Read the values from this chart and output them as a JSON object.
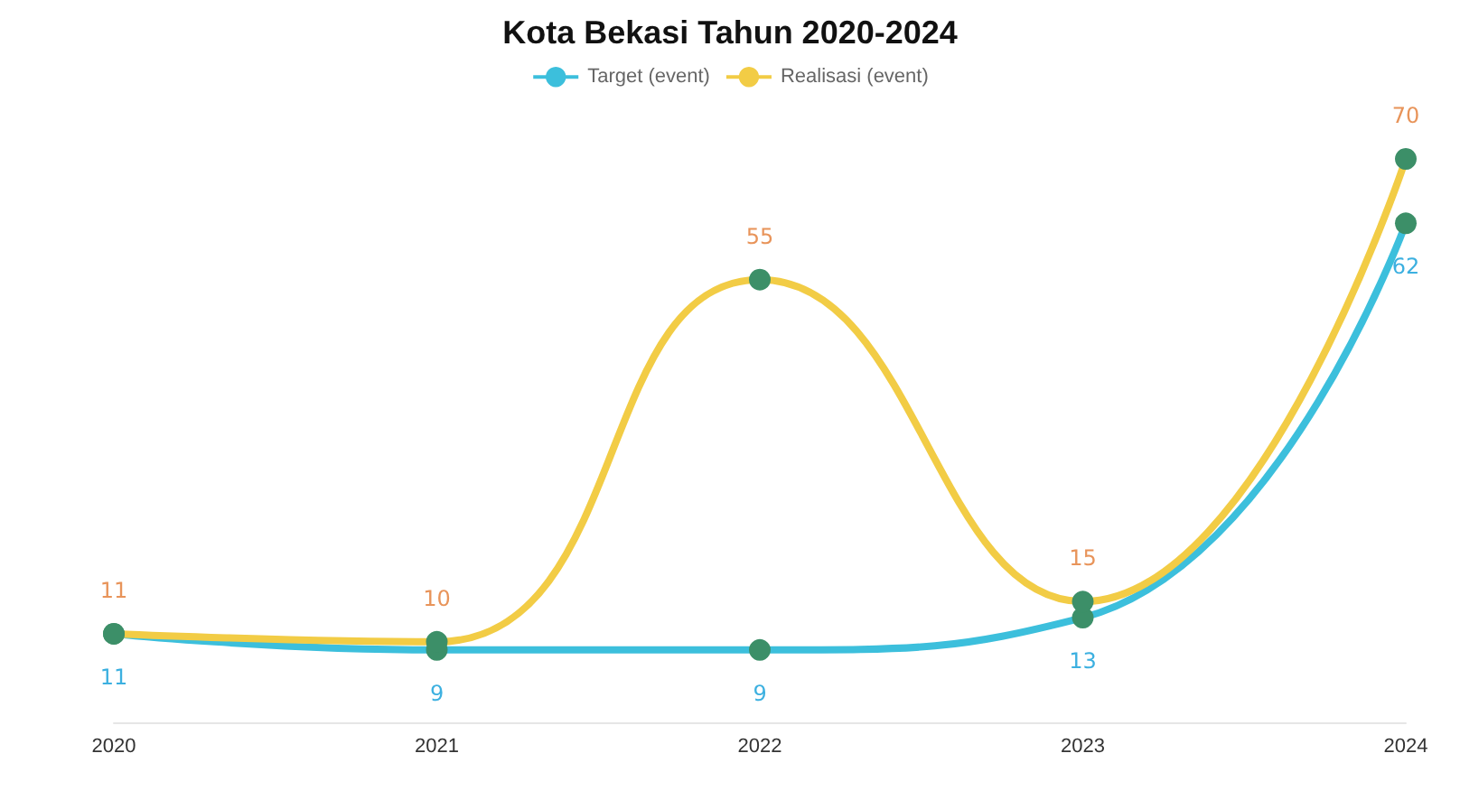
{
  "chart_data": {
    "type": "line",
    "title": "Kota Bekasi Tahun 2020-2024",
    "categories": [
      "2020",
      "2021",
      "2022",
      "2023",
      "2024"
    ],
    "series": [
      {
        "name": "Target (event)",
        "color": "#3cbfdc",
        "values": [
          11,
          9,
          9,
          13,
          62
        ]
      },
      {
        "name": "Realisasi (event)",
        "color": "#f2cc45",
        "values": [
          11,
          10,
          55,
          15,
          70
        ]
      }
    ],
    "data_labels": true,
    "legend": "top",
    "marker": "circle",
    "grid": false
  }
}
